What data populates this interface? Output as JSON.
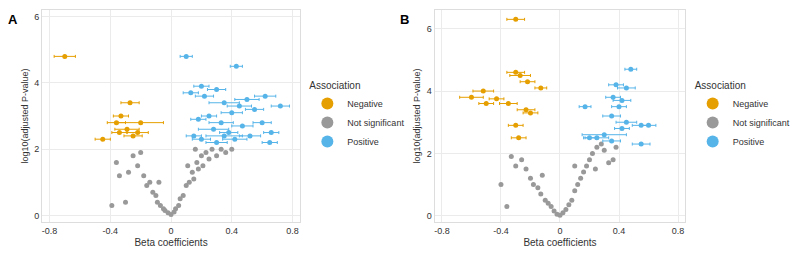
{
  "chart_data": [
    {
      "type": "scatter",
      "title": "A",
      "x_label": "Beta coefficients",
      "y_label": "log10(adjusted P-value)",
      "legend_title": "Association",
      "legend": "right",
      "grid": true,
      "xlim": [
        -0.85,
        0.85
      ],
      "xticks": [
        -0.8,
        -0.4,
        0,
        0.4,
        0.8
      ],
      "ylim": [
        -0.2,
        6.2
      ],
      "yticks": [
        0,
        2,
        4,
        6
      ],
      "series": [
        {
          "name": "Negative",
          "color": "#E69F00",
          "x": [
            -0.7,
            -0.27,
            -0.33,
            -0.36,
            -0.2,
            -0.29,
            -0.34,
            -0.25,
            -0.45,
            -0.22
          ],
          "values": [
            4.8,
            3.4,
            3.0,
            2.8,
            2.8,
            2.6,
            2.5,
            2.4,
            2.3,
            2.5
          ],
          "xerr": [
            0.07,
            0.06,
            0.05,
            0.06,
            0.15,
            0.08,
            0.05,
            0.06,
            0.05,
            0.07
          ]
        },
        {
          "name": "Not significant",
          "color": "#999999",
          "x": [
            -0.36,
            -0.34,
            -0.3,
            -0.28,
            -0.25,
            -0.22,
            -0.2,
            -0.18,
            -0.16,
            -0.14,
            -0.12,
            -0.1,
            -0.09,
            -0.07,
            -0.05,
            -0.04,
            -0.02,
            0,
            0.02,
            0.03,
            0.05,
            0.06,
            0.08,
            0.1,
            0.12,
            0.14,
            0.15,
            0.17,
            0.18,
            0.2,
            0.21,
            0.23,
            0.25,
            0.27,
            0.3,
            0.33,
            0.36,
            0.4,
            -0.08,
            0.11,
            0.16,
            -0.39
          ],
          "values": [
            1.6,
            1.2,
            0.4,
            1.3,
            1.8,
            1.5,
            1.9,
            1.2,
            0.9,
            1.0,
            0.7,
            0.6,
            0.4,
            0.3,
            0.2,
            0.15,
            0.08,
            0.03,
            0.1,
            0.2,
            0.3,
            0.5,
            0.6,
            0.9,
            1.0,
            1.3,
            1.1,
            1.6,
            1.4,
            1.8,
            1.5,
            1.9,
            1.7,
            2.0,
            1.8,
            2.0,
            1.9,
            2.0,
            1.0,
            1.5,
            2.0,
            0.3
          ]
        },
        {
          "name": "Positive",
          "color": "#56B4E9",
          "x": [
            0.1,
            0.43,
            0.2,
            0.3,
            0.13,
            0.22,
            0.62,
            0.5,
            0.72,
            0.35,
            0.45,
            0.4,
            0.55,
            0.25,
            0.18,
            0.33,
            0.6,
            0.47,
            0.28,
            0.38,
            0.15,
            0.52,
            0.42,
            0.65,
            0.2,
            0.3,
            0.66,
            0.35
          ],
          "values": [
            4.8,
            4.5,
            3.9,
            3.8,
            3.7,
            3.6,
            3.6,
            3.5,
            3.3,
            3.4,
            3.3,
            3.1,
            3.2,
            3.0,
            2.9,
            2.8,
            2.8,
            2.7,
            2.6,
            2.5,
            2.4,
            2.4,
            2.3,
            2.2,
            2.3,
            2.2,
            2.5,
            2.4
          ],
          "xerr": [
            0.04,
            0.04,
            0.05,
            0.06,
            0.05,
            0.06,
            0.07,
            0.08,
            0.06,
            0.1,
            0.08,
            0.07,
            0.06,
            0.05,
            0.05,
            0.08,
            0.06,
            0.07,
            0.1,
            0.06,
            0.05,
            0.07,
            0.08,
            0.05,
            0.06,
            0.07,
            0.05,
            0.12
          ]
        }
      ]
    },
    {
      "type": "scatter",
      "title": "B",
      "x_label": "Beta coefficients",
      "y_label": "log10(adjusted P-value)",
      "legend_title": "Association",
      "legend": "right",
      "grid": true,
      "xlim": [
        -0.85,
        0.85
      ],
      "xticks": [
        -0.8,
        -0.4,
        0,
        0.4,
        0.8
      ],
      "ylim": [
        -0.2,
        6.6
      ],
      "yticks": [
        0,
        2,
        4,
        6
      ],
      "series": [
        {
          "name": "Negative",
          "color": "#E69F00",
          "x": [
            -0.3,
            -0.3,
            -0.27,
            -0.22,
            -0.52,
            -0.6,
            -0.43,
            -0.35,
            -0.5,
            -0.13,
            -0.23,
            -0.2,
            -0.3,
            -0.28
          ],
          "values": [
            6.3,
            4.6,
            4.5,
            4.3,
            4.0,
            3.8,
            3.75,
            3.6,
            3.6,
            4.1,
            3.4,
            3.3,
            2.9,
            2.5
          ],
          "xerr": [
            0.06,
            0.06,
            0.07,
            0.05,
            0.07,
            0.08,
            0.05,
            0.06,
            0.05,
            0.04,
            0.06,
            0.05,
            0.05,
            0.05
          ]
        },
        {
          "name": "Not significant",
          "color": "#999999",
          "x": [
            -0.33,
            -0.3,
            -0.26,
            -0.23,
            -0.2,
            -0.18,
            -0.15,
            -0.13,
            -0.4,
            -0.1,
            -0.08,
            -0.06,
            -0.04,
            -0.02,
            0,
            0.02,
            0.04,
            0.06,
            0.08,
            0.1,
            0.12,
            0.14,
            0.16,
            0.18,
            0.2,
            0.22,
            0.25,
            0.28,
            0.3,
            0.33,
            0.36,
            0.38,
            0.24,
            -0.12,
            0.1,
            -0.36
          ],
          "values": [
            1.9,
            1.6,
            1.8,
            1.5,
            1.2,
            1.0,
            0.9,
            0.7,
            1.0,
            0.5,
            0.4,
            0.3,
            0.15,
            0.05,
            0.02,
            0.1,
            0.2,
            0.35,
            0.5,
            0.8,
            1.0,
            1.2,
            1.4,
            1.6,
            1.8,
            2.0,
            2.2,
            2.3,
            2.1,
            1.7,
            1.8,
            2.2,
            1.5,
            1.3,
            1.6,
            0.3
          ]
        },
        {
          "name": "Positive",
          "color": "#56B4E9",
          "x": [
            0.48,
            0.38,
            0.45,
            0.36,
            0.42,
            0.17,
            0.4,
            0.35,
            0.45,
            0.55,
            0.6,
            0.3,
            0.25,
            0.42,
            0.35,
            0.2,
            0.55
          ],
          "values": [
            4.7,
            4.2,
            4.1,
            3.8,
            3.7,
            3.5,
            3.5,
            3.2,
            3.0,
            2.9,
            2.9,
            2.6,
            2.5,
            2.8,
            2.4,
            2.5,
            2.3
          ],
          "xerr": [
            0.04,
            0.05,
            0.06,
            0.05,
            0.06,
            0.04,
            0.05,
            0.06,
            0.07,
            0.06,
            0.05,
            0.15,
            0.08,
            0.05,
            0.06,
            0.04,
            0.06
          ]
        }
      ]
    }
  ]
}
